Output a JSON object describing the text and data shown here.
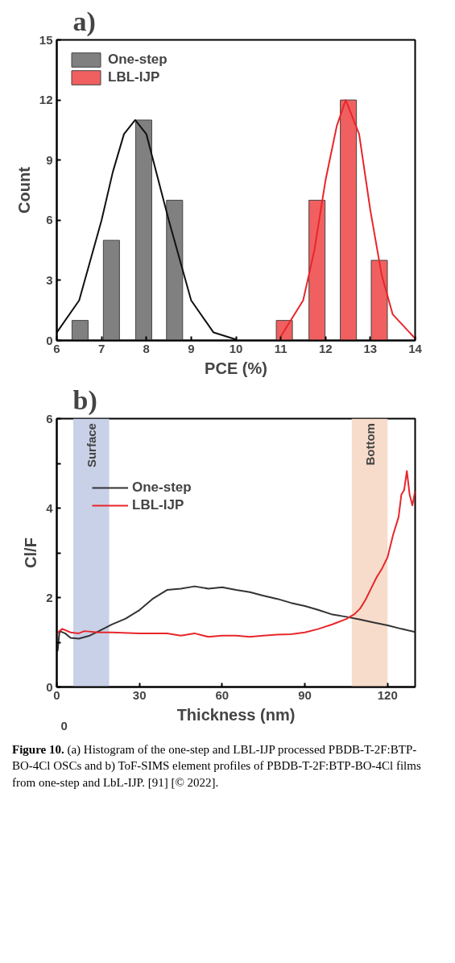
{
  "chart_data": [
    {
      "type": "bar",
      "title": "a)",
      "xlabel": "PCE (%)",
      "ylabel": "Count",
      "xlim": [
        6,
        14
      ],
      "xticks": [
        6,
        7,
        8,
        9,
        10,
        11,
        12,
        13,
        14
      ],
      "ylim": [
        0,
        15
      ],
      "yticks": [
        0,
        3,
        6,
        9,
        12,
        15
      ],
      "grid": false,
      "legend": "top left",
      "series": [
        {
          "name": "One-step",
          "color": "#808080",
          "x": [
            6.52,
            7.22,
            7.94,
            8.63
          ],
          "values": [
            1,
            5,
            11,
            7
          ]
        },
        {
          "name": "LBL-IJP",
          "color": "#f06060",
          "x": [
            11.08,
            11.81,
            12.51,
            13.2
          ],
          "values": [
            1,
            7,
            12,
            4
          ]
        },
        {
          "type": "line",
          "color": "#111111",
          "x": [
            6,
            6.5,
            7,
            7.25,
            7.5,
            7.75,
            8,
            8.5,
            9,
            9.5,
            10
          ],
          "values": [
            0.4,
            2.0,
            6.0,
            8.4,
            10.3,
            11,
            10.3,
            6.0,
            2.0,
            0.4,
            0.05
          ]
        },
        {
          "type": "line",
          "color": "#e8262a",
          "x": [
            11,
            11.5,
            11.75,
            12,
            12.25,
            12.45,
            12.75,
            13,
            13.25,
            13.5,
            14
          ],
          "values": [
            0.2,
            2.0,
            4.5,
            8.0,
            10.7,
            12,
            10.3,
            6.5,
            3.3,
            1.3,
            0.1
          ]
        }
      ]
    },
    {
      "type": "line",
      "title": "b)",
      "xlabel": "Thickness (nm)",
      "ylabel": "Cl/F",
      "xlim": [
        0,
        130
      ],
      "xticks": [
        0,
        30,
        60,
        90,
        120
      ],
      "ylim": [
        0,
        6
      ],
      "yticks": [
        0,
        {
          "value": 1,
          "label": null
        },
        2,
        {
          "value": 3,
          "label": null
        },
        4,
        {
          "value": 5,
          "label": null
        },
        6
      ],
      "grid": false,
      "legend": "top left",
      "bands": [
        {
          "axis": "x",
          "from": 6,
          "to": 19,
          "label": "Surface",
          "color": "#c9d1e8"
        },
        {
          "axis": "x",
          "from": 107,
          "to": 120,
          "label": "Bottom",
          "color": "#f7dccb"
        }
      ],
      "series": [
        {
          "name": "One-step",
          "color": "#333333",
          "x": [
            0.3,
            1,
            3,
            5,
            8,
            12,
            15,
            20,
            25,
            30,
            35,
            40,
            45,
            50,
            55,
            60,
            65,
            70,
            75,
            80,
            85,
            90,
            95,
            100,
            105,
            110,
            115,
            120,
            125,
            130
          ],
          "values": [
            0.8,
            1.25,
            1.2,
            1.1,
            1.08,
            1.15,
            1.24,
            1.4,
            1.53,
            1.72,
            1.98,
            2.17,
            2.2,
            2.25,
            2.2,
            2.23,
            2.17,
            2.12,
            2.04,
            1.97,
            1.88,
            1.81,
            1.72,
            1.62,
            1.57,
            1.51,
            1.44,
            1.38,
            1.3,
            1.23
          ]
        },
        {
          "name": "LBL-IJP",
          "color": "#e8262a",
          "x": [
            0,
            2,
            5,
            8,
            10,
            15,
            20,
            30,
            40,
            45,
            50,
            55,
            60,
            65,
            70,
            75,
            80,
            85,
            90,
            95,
            100,
            105,
            108,
            110,
            112,
            114,
            116,
            118,
            120,
            122,
            124,
            125,
            126,
            127,
            128,
            129,
            130
          ],
          "values": [
            1.2,
            1.3,
            1.22,
            1.2,
            1.25,
            1.22,
            1.22,
            1.2,
            1.2,
            1.15,
            1.2,
            1.12,
            1.15,
            1.15,
            1.12,
            1.15,
            1.17,
            1.18,
            1.22,
            1.3,
            1.4,
            1.52,
            1.63,
            1.75,
            1.95,
            2.2,
            2.45,
            2.65,
            2.9,
            3.4,
            3.8,
            4.3,
            4.4,
            4.83,
            4.3,
            4.06,
            4.38
          ]
        }
      ],
      "annotations": [
        "0",
        "Figure 10.",
        "(a) Histogram of the one-step and LBL-IJP processed PBDB-T-2F:BTP-BO-4Cl OSCs and b) ToF-SIMS element profiles of PBDB-T-2F:BTP-BO-4Cl films from one-step and LbL-IJP. [91] [© 2022]."
      ]
    }
  ]
}
